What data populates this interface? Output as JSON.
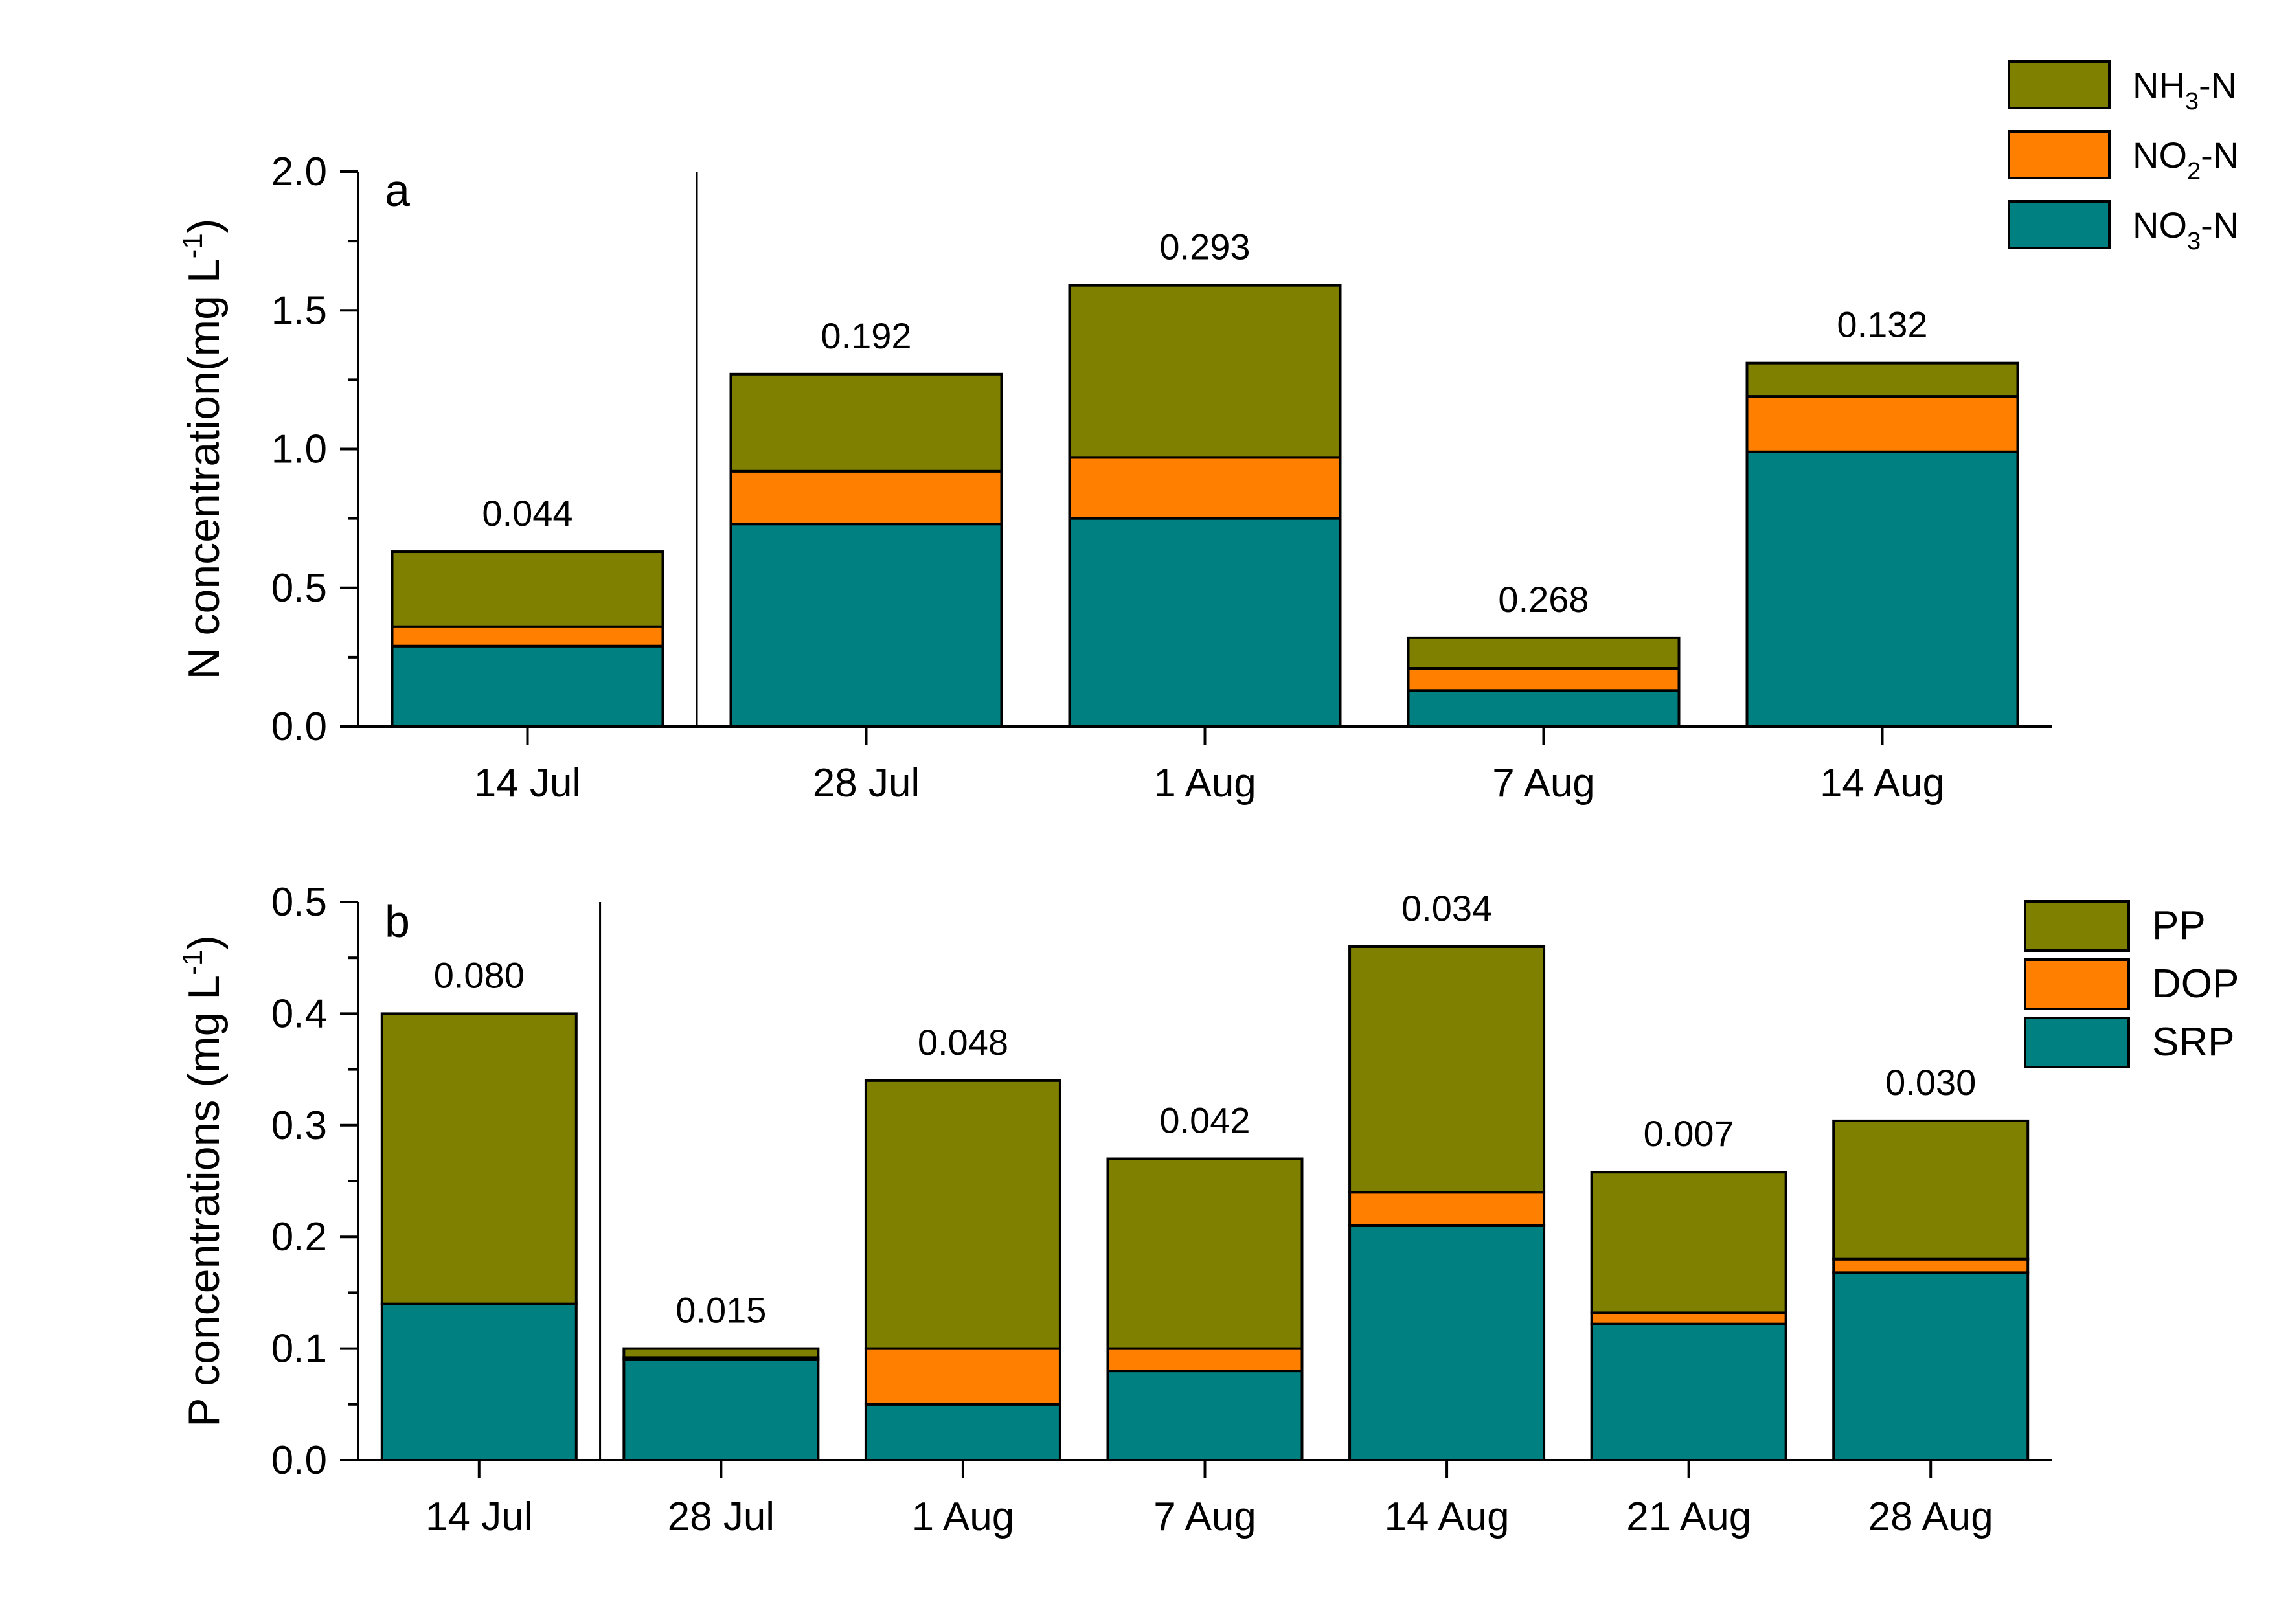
{
  "colors": {
    "olive": "#808000",
    "orange": "#ff8000",
    "teal": "#008080"
  },
  "chart_data": [
    {
      "type": "bar",
      "stacked": true,
      "panel_label": "a",
      "ylabel": "N concentration(mg L-1)",
      "ylabel_main": "N concentration(mg L",
      "ylabel_exp": "-1",
      "ylabel_close": ")",
      "ylim": [
        0,
        2.0
      ],
      "yticks": [
        "0.0",
        "0.5",
        "1.0",
        "1.5",
        "2.0"
      ],
      "ytick_values": [
        0,
        0.5,
        1.0,
        1.5,
        2.0
      ],
      "categories": [
        "14 Jul",
        "28 Jul",
        "1 Aug",
        "7 Aug",
        "14 Aug"
      ],
      "separator_after_index": 0,
      "series": [
        {
          "name": "NO3-N",
          "label_main": "NO",
          "label_sub": "3",
          "label_suffix": "-N",
          "color": "#008080",
          "values": [
            0.29,
            0.73,
            0.75,
            0.13,
            0.99
          ]
        },
        {
          "name": "NO2-N",
          "label_main": "NO",
          "label_sub": "2",
          "label_suffix": "-N",
          "color": "#ff8000",
          "values": [
            0.07,
            0.19,
            0.22,
            0.08,
            0.2
          ]
        },
        {
          "name": "NH3-N",
          "label_main": "NH",
          "label_sub": "3",
          "label_suffix": "-N",
          "color": "#808000",
          "values": [
            0.27,
            0.35,
            0.62,
            0.11,
            0.12
          ]
        }
      ],
      "bar_annotations": [
        "0.044",
        "0.192",
        "0.293",
        "0.268",
        "0.132"
      ],
      "legend_position": "top-right"
    },
    {
      "type": "bar",
      "stacked": true,
      "panel_label": "b",
      "ylabel": "P concentrations (mg L-1)",
      "ylabel_main": "P concentrations (mg L",
      "ylabel_exp": "-1",
      "ylabel_close": ")",
      "ylim": [
        0,
        0.5
      ],
      "yticks": [
        "0.0",
        "0.1",
        "0.2",
        "0.3",
        "0.4",
        "0.5"
      ],
      "ytick_values": [
        0,
        0.1,
        0.2,
        0.3,
        0.4,
        0.5
      ],
      "categories": [
        "14 Jul",
        "28 Jul",
        "1 Aug",
        "7 Aug",
        "14 Aug",
        "21 Aug",
        "28 Aug"
      ],
      "separator_after_index": 0,
      "series": [
        {
          "name": "SRP",
          "color": "#008080",
          "values": [
            0.14,
            0.09,
            0.05,
            0.08,
            0.21,
            0.122,
            0.168
          ]
        },
        {
          "name": "DOP",
          "color": "#ff8000",
          "values": [
            0.0,
            0.002,
            0.05,
            0.02,
            0.03,
            0.01,
            0.012
          ]
        },
        {
          "name": "PP",
          "color": "#808000",
          "values": [
            0.26,
            0.008,
            0.24,
            0.17,
            0.22,
            0.126,
            0.124
          ]
        }
      ],
      "bar_annotations": [
        "0.080",
        "0.015",
        "0.048",
        "0.042",
        "0.034",
        "0.007",
        "0.030"
      ],
      "legend_position": "top-right"
    }
  ]
}
